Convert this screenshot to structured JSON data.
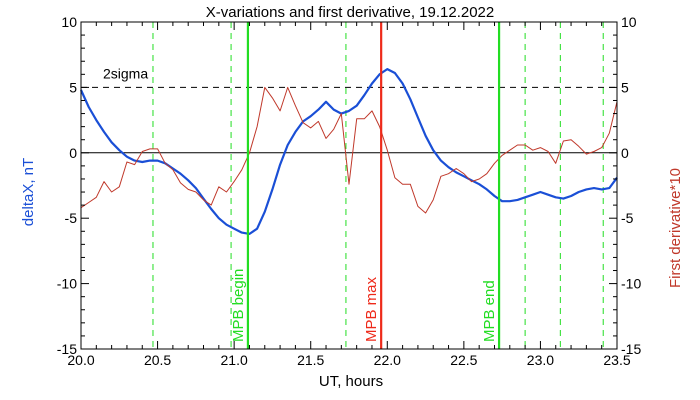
{
  "chart_data": {
    "type": "line",
    "title": "X-variations and first derivative, 19.12.2022",
    "xlabel": "UT, hours",
    "ylabel_left": "deltaX, nT",
    "ylabel_right": "First derivative*10",
    "xlim": [
      20.0,
      23.5
    ],
    "ylim_left": [
      -15,
      10
    ],
    "ylim_right": [
      -15,
      10
    ],
    "x_ticks": [
      20.0,
      20.5,
      21.0,
      21.5,
      22.0,
      22.5,
      23.0,
      23.5
    ],
    "x_tick_labels": [
      "20.0",
      "20.5",
      "21.0",
      "21.5",
      "22.0",
      "22.5",
      "23.0",
      "23.5"
    ],
    "y_ticks": [
      -15,
      -10,
      -5,
      0,
      5,
      10
    ],
    "y_tick_labels": [
      "-15",
      "-10",
      "-5",
      "0",
      "5",
      "10"
    ],
    "colors": {
      "deltax": "#1a4fd6",
      "derivative": "#c0392b",
      "mpb_green": "#22dd22",
      "mpb_red": "#ee2a1a",
      "axis": "#000000"
    },
    "sigma_line": {
      "y": 5.0,
      "label": "2sigma"
    },
    "zero_line": {
      "y": 0
    },
    "dashed_green_x": [
      20.47,
      20.98,
      21.73,
      22.9,
      23.13,
      23.41
    ],
    "markers": [
      {
        "x": 21.09,
        "label": "MPB begin",
        "color": "#22dd22"
      },
      {
        "x": 21.96,
        "label": "MPB max",
        "color": "#ee2a1a"
      },
      {
        "x": 22.73,
        "label": "MPB end",
        "color": "#22dd22"
      }
    ],
    "series": [
      {
        "name": "deltaX, nT",
        "axis": "left",
        "color": "#1a4fd6",
        "x": [
          20.0,
          20.05,
          20.1,
          20.15,
          20.2,
          20.25,
          20.3,
          20.35,
          20.4,
          20.45,
          20.5,
          20.55,
          20.6,
          20.65,
          20.7,
          20.75,
          20.8,
          20.85,
          20.9,
          20.95,
          21.0,
          21.05,
          21.1,
          21.15,
          21.2,
          21.25,
          21.3,
          21.35,
          21.4,
          21.45,
          21.5,
          21.55,
          21.6,
          21.65,
          21.7,
          21.75,
          21.8,
          21.85,
          21.9,
          21.95,
          22.0,
          22.05,
          22.1,
          22.15,
          22.2,
          22.25,
          22.3,
          22.35,
          22.4,
          22.45,
          22.5,
          22.55,
          22.6,
          22.65,
          22.7,
          22.75,
          22.8,
          22.85,
          22.9,
          22.95,
          23.0,
          23.05,
          23.1,
          23.15,
          23.2,
          23.25,
          23.3,
          23.35,
          23.4,
          23.45,
          23.5
        ],
        "values": [
          4.8,
          3.5,
          2.5,
          1.6,
          0.8,
          0.2,
          -0.3,
          -0.6,
          -0.7,
          -0.6,
          -0.6,
          -0.8,
          -1.2,
          -1.6,
          -2.1,
          -2.7,
          -3.5,
          -4.3,
          -5.0,
          -5.5,
          -5.8,
          -6.1,
          -6.2,
          -5.8,
          -4.5,
          -2.8,
          -0.9,
          0.6,
          1.6,
          2.4,
          2.8,
          3.3,
          3.9,
          3.3,
          3.0,
          3.2,
          3.6,
          4.4,
          5.3,
          6.0,
          6.4,
          6.1,
          5.3,
          4.1,
          2.7,
          1.3,
          0.2,
          -0.6,
          -1.1,
          -1.5,
          -1.8,
          -2.1,
          -2.4,
          -2.8,
          -3.3,
          -3.7,
          -3.7,
          -3.6,
          -3.4,
          -3.2,
          -3.0,
          -3.2,
          -3.4,
          -3.5,
          -3.3,
          -3.0,
          -2.8,
          -2.7,
          -2.8,
          -2.7,
          -1.9
        ]
      },
      {
        "name": "First derivative*10",
        "axis": "right",
        "color": "#c0392b",
        "x": [
          20.0,
          20.05,
          20.1,
          20.15,
          20.2,
          20.25,
          20.3,
          20.35,
          20.4,
          20.45,
          20.5,
          20.55,
          20.6,
          20.65,
          20.7,
          20.75,
          20.8,
          20.85,
          20.9,
          20.95,
          21.0,
          21.05,
          21.1,
          21.15,
          21.2,
          21.25,
          21.3,
          21.35,
          21.4,
          21.45,
          21.5,
          21.55,
          21.6,
          21.65,
          21.7,
          21.75,
          21.8,
          21.85,
          21.9,
          21.95,
          22.0,
          22.05,
          22.1,
          22.15,
          22.2,
          22.25,
          22.3,
          22.35,
          22.4,
          22.45,
          22.5,
          22.55,
          22.6,
          22.65,
          22.7,
          22.75,
          22.8,
          22.85,
          22.9,
          22.95,
          23.0,
          23.05,
          23.1,
          23.15,
          23.2,
          23.25,
          23.3,
          23.35,
          23.4,
          23.45,
          23.5
        ],
        "values": [
          -4.2,
          -3.8,
          -3.4,
          -2.2,
          -3.0,
          -2.6,
          -0.7,
          -0.9,
          0.1,
          0.3,
          0.3,
          -0.8,
          -1.3,
          -2.3,
          -2.8,
          -3.0,
          -3.6,
          -4.0,
          -2.6,
          -3.0,
          -2.2,
          -1.3,
          0.0,
          2.0,
          5.0,
          4.2,
          3.2,
          5.0,
          3.6,
          2.3,
          1.9,
          2.4,
          1.1,
          1.8,
          3.0,
          -2.4,
          2.6,
          2.6,
          3.2,
          2.0,
          0.2,
          -1.9,
          -2.4,
          -2.4,
          -4.1,
          -4.6,
          -3.6,
          -1.8,
          -1.6,
          -1.2,
          -1.6,
          -2.2,
          -2.0,
          -1.6,
          -0.8,
          -0.2,
          0.2,
          0.6,
          0.6,
          0.2,
          0.4,
          0.1,
          -0.8,
          0.9,
          1.0,
          0.5,
          -0.1,
          0.1,
          0.4,
          1.5,
          3.9
        ]
      }
    ]
  }
}
